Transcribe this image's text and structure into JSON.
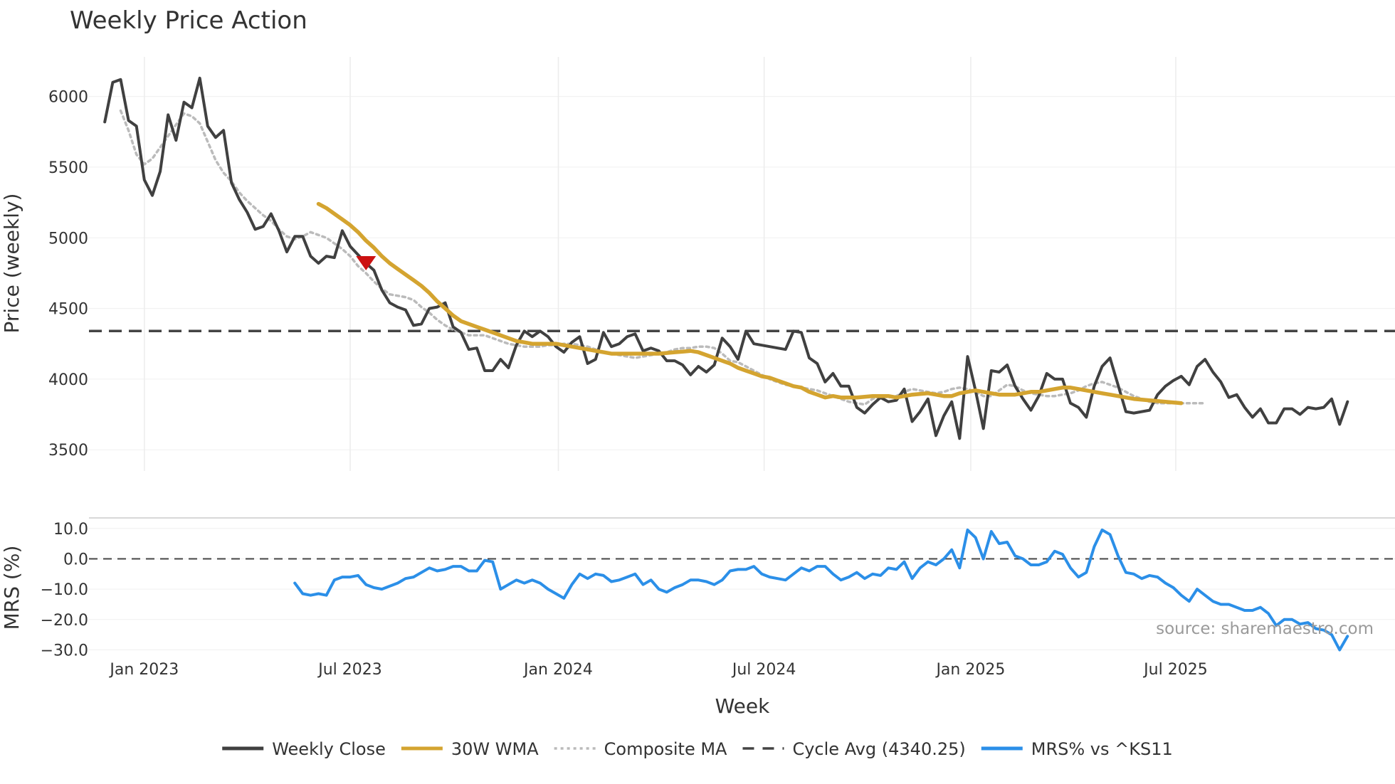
{
  "chart_data": [
    {
      "panel": "price",
      "type": "line",
      "title": "Weekly Price Action",
      "ylabel": "Price (weekly)",
      "xlabel": "Week",
      "ylim": [
        3350,
        6280
      ],
      "yticks": [
        3500,
        4000,
        4500,
        5000,
        5500,
        6000
      ],
      "xticks": [
        {
          "label": "Jan 2023",
          "week": 5
        },
        {
          "label": "Jul 2023",
          "week": 31
        },
        {
          "label": "Jan 2024",
          "week": 57.3
        },
        {
          "label": "Jul 2024",
          "week": 83.3
        },
        {
          "label": "Jan 2025",
          "week": 109.4
        },
        {
          "label": "Jul 2025",
          "week": 135.3
        }
      ],
      "xlim": [
        -2,
        163
      ],
      "series": [
        {
          "name": "Weekly Close",
          "color": "#404040",
          "style": "solid",
          "values": [
            5820,
            6100,
            6120,
            5830,
            5790,
            5410,
            5300,
            5470,
            5870,
            5690,
            5960,
            5920,
            6130,
            5790,
            5710,
            5760,
            5390,
            5270,
            5180,
            5060,
            5080,
            5170,
            5050,
            4900,
            5010,
            5010,
            4870,
            4820,
            4870,
            4860,
            5050,
            4940,
            4880,
            4820,
            4770,
            4630,
            4540,
            4510,
            4490,
            4380,
            4390,
            4500,
            4510,
            4540,
            4370,
            4330,
            4210,
            4220,
            4060,
            4060,
            4140,
            4080,
            4240,
            4340,
            4300,
            4340,
            4300,
            4230,
            4190,
            4260,
            4300,
            4110,
            4140,
            4330,
            4230,
            4250,
            4300,
            4320,
            4200,
            4220,
            4200,
            4130,
            4130,
            4100,
            4030,
            4090,
            4050,
            4100,
            4290,
            4230,
            4140,
            4340,
            4250,
            4240,
            4230,
            4220,
            4210,
            4340,
            4330,
            4150,
            4110,
            3980,
            4040,
            3950,
            3950,
            3800,
            3760,
            3820,
            3870,
            3840,
            3850,
            3930,
            3700,
            3770,
            3860,
            3600,
            3740,
            3840,
            3580,
            4160,
            3920,
            3650,
            4060,
            4050,
            4100,
            3950,
            3860,
            3780,
            3880,
            4040,
            4000,
            4000,
            3830,
            3800,
            3730,
            3950,
            4090,
            4150,
            3960,
            3770,
            3760,
            3770,
            3780,
            3890,
            3950,
            3990,
            4020,
            3960,
            4090,
            4140,
            4050,
            3980,
            3870,
            3890,
            3800,
            3730,
            3790,
            3690,
            3690,
            3790,
            3790,
            3750,
            3800,
            3790,
            3800,
            3860,
            3680,
            3840
          ]
        },
        {
          "name": "30W WMA",
          "color": "#D4A430",
          "style": "solid",
          "start_week": 27,
          "values": [
            5240,
            5210,
            5170,
            5130,
            5090,
            5040,
            4980,
            4930,
            4870,
            4820,
            4780,
            4740,
            4700,
            4660,
            4610,
            4550,
            4500,
            4450,
            4410,
            4390,
            4370,
            4350,
            4330,
            4310,
            4290,
            4270,
            4260,
            4250,
            4250,
            4250,
            4250,
            4240,
            4230,
            4220,
            4210,
            4200,
            4190,
            4180,
            4180,
            4180,
            4180,
            4180,
            4180,
            4180,
            4185,
            4190,
            4195,
            4200,
            4190,
            4170,
            4150,
            4130,
            4110,
            4080,
            4060,
            4040,
            4020,
            4010,
            3990,
            3970,
            3950,
            3940,
            3910,
            3890,
            3870,
            3880,
            3870,
            3870,
            3870,
            3875,
            3880,
            3880,
            3880,
            3870,
            3880,
            3890,
            3895,
            3900,
            3890,
            3880,
            3880,
            3900,
            3910,
            3920,
            3910,
            3900,
            3890,
            3890,
            3890,
            3900,
            3910,
            3910,
            3920,
            3930,
            3940,
            3940,
            3930,
            3920,
            3910,
            3900,
            3890,
            3880,
            3870,
            3860,
            3855,
            3850,
            3845,
            3840,
            3835,
            3830
          ]
        },
        {
          "name": "Composite MA",
          "color": "#bbbbbb",
          "style": "dotted",
          "start_week": 2,
          "values": [
            5900,
            5760,
            5590,
            5520,
            5560,
            5640,
            5720,
            5800,
            5880,
            5860,
            5810,
            5680,
            5550,
            5460,
            5400,
            5320,
            5260,
            5210,
            5160,
            5120,
            5060,
            5010,
            4990,
            5010,
            5040,
            5020,
            5000,
            4960,
            4920,
            4870,
            4800,
            4750,
            4690,
            4640,
            4600,
            4590,
            4580,
            4560,
            4510,
            4470,
            4420,
            4380,
            4350,
            4330,
            4310,
            4310,
            4310,
            4290,
            4270,
            4250,
            4240,
            4230,
            4230,
            4230,
            4240,
            4240,
            4250,
            4250,
            4240,
            4230,
            4210,
            4190,
            4180,
            4170,
            4160,
            4150,
            4160,
            4170,
            4180,
            4190,
            4210,
            4220,
            4220,
            4230,
            4230,
            4220,
            4180,
            4130,
            4120,
            4090,
            4060,
            4030,
            4000,
            3980,
            3960,
            3950,
            3940,
            3930,
            3920,
            3900,
            3880,
            3860,
            3840,
            3830,
            3820,
            3860,
            3880,
            3870,
            3880,
            3910,
            3930,
            3920,
            3910,
            3900,
            3910,
            3930,
            3940,
            3930,
            3910,
            3880,
            3880,
            3920,
            3960,
            3950,
            3920,
            3900,
            3890,
            3880,
            3880,
            3890,
            3900,
            3920,
            3950,
            3970,
            3980,
            3960,
            3940,
            3910,
            3880,
            3860,
            3840,
            3830,
            3830,
            3830,
            3830,
            3830,
            3830,
            3830
          ]
        }
      ],
      "hlines": [
        {
          "name": "Cycle Avg (4340.25)",
          "value": 4340.25,
          "color": "#444444",
          "style": "dashed"
        }
      ],
      "markers": [
        {
          "type": "triangle-down",
          "week": 33,
          "value": 4820,
          "color": "#cc1111"
        }
      ]
    },
    {
      "panel": "mrs",
      "type": "line",
      "ylabel": "MRS (%)",
      "ylim": [
        -32,
        13
      ],
      "yticks": [
        -30.0,
        -20.0,
        -10.0,
        0.0,
        10.0
      ],
      "ytick_labels": [
        "−30.0",
        "−20.0",
        "−10.0",
        "0.0",
        "10.0"
      ],
      "xlim": [
        -2,
        163
      ],
      "hlines": [
        {
          "value": 0,
          "color": "#444444",
          "style": "dashed"
        }
      ],
      "series": [
        {
          "name": "MRS% vs ^KS11",
          "color": "#2B8FE8",
          "style": "solid",
          "start_week": 24,
          "values": [
            -8,
            -11.5,
            -12,
            -11.5,
            -12,
            -7,
            -6,
            -6,
            -5.5,
            -8.5,
            -9.5,
            -10,
            -9,
            -8,
            -6.5,
            -6,
            -4.5,
            -3,
            -4,
            -3.5,
            -2.5,
            -2.5,
            -4,
            -4,
            -0.5,
            -1,
            -10,
            -8.5,
            -7,
            -8,
            -7,
            -8,
            -10,
            -11.5,
            -13,
            -8.5,
            -5,
            -6.5,
            -5,
            -5.5,
            -7.5,
            -7,
            -6,
            -5,
            -8.5,
            -7,
            -10,
            -11,
            -9.5,
            -8.5,
            -7,
            -7,
            -7.5,
            -8.5,
            -7,
            -4,
            -3.5,
            -3.5,
            -2.5,
            -5,
            -6,
            -6.5,
            -7,
            -5,
            -3,
            -4,
            -2.5,
            -2.5,
            -5,
            -7,
            -6,
            -4.5,
            -6.5,
            -5,
            -5.5,
            -3,
            -3.5,
            -1,
            -6.5,
            -3,
            -1,
            -2,
            0,
            3,
            -3,
            9.5,
            7,
            0,
            9,
            5,
            5.5,
            1,
            0,
            -2,
            -2,
            -1,
            2.5,
            1.5,
            -3,
            -6,
            -4.5,
            4,
            9.5,
            8,
            1,
            -4.5,
            -5,
            -6.5,
            -5.5,
            -6,
            -8,
            -9.5,
            -12,
            -14,
            -10,
            -12,
            -14,
            -15,
            -15,
            -16,
            -17,
            -17,
            -16,
            -18,
            -22,
            -20,
            -20,
            -21.5,
            -21,
            -23,
            -23.5,
            -25,
            -30,
            -25.5
          ]
        }
      ],
      "source": "source: sharemaestro.com"
    }
  ],
  "legend": [
    {
      "label": "Weekly Close",
      "color": "#404040",
      "style": "solid"
    },
    {
      "label": "30W WMA",
      "color": "#D4A430",
      "style": "solid"
    },
    {
      "label": "Composite MA",
      "color": "#bbbbbb",
      "style": "dotted"
    },
    {
      "label": "Cycle Avg (4340.25)",
      "color": "#444444",
      "style": "dashed"
    },
    {
      "label": "MRS% vs ^KS11",
      "color": "#2B8FE8",
      "style": "solid"
    }
  ]
}
